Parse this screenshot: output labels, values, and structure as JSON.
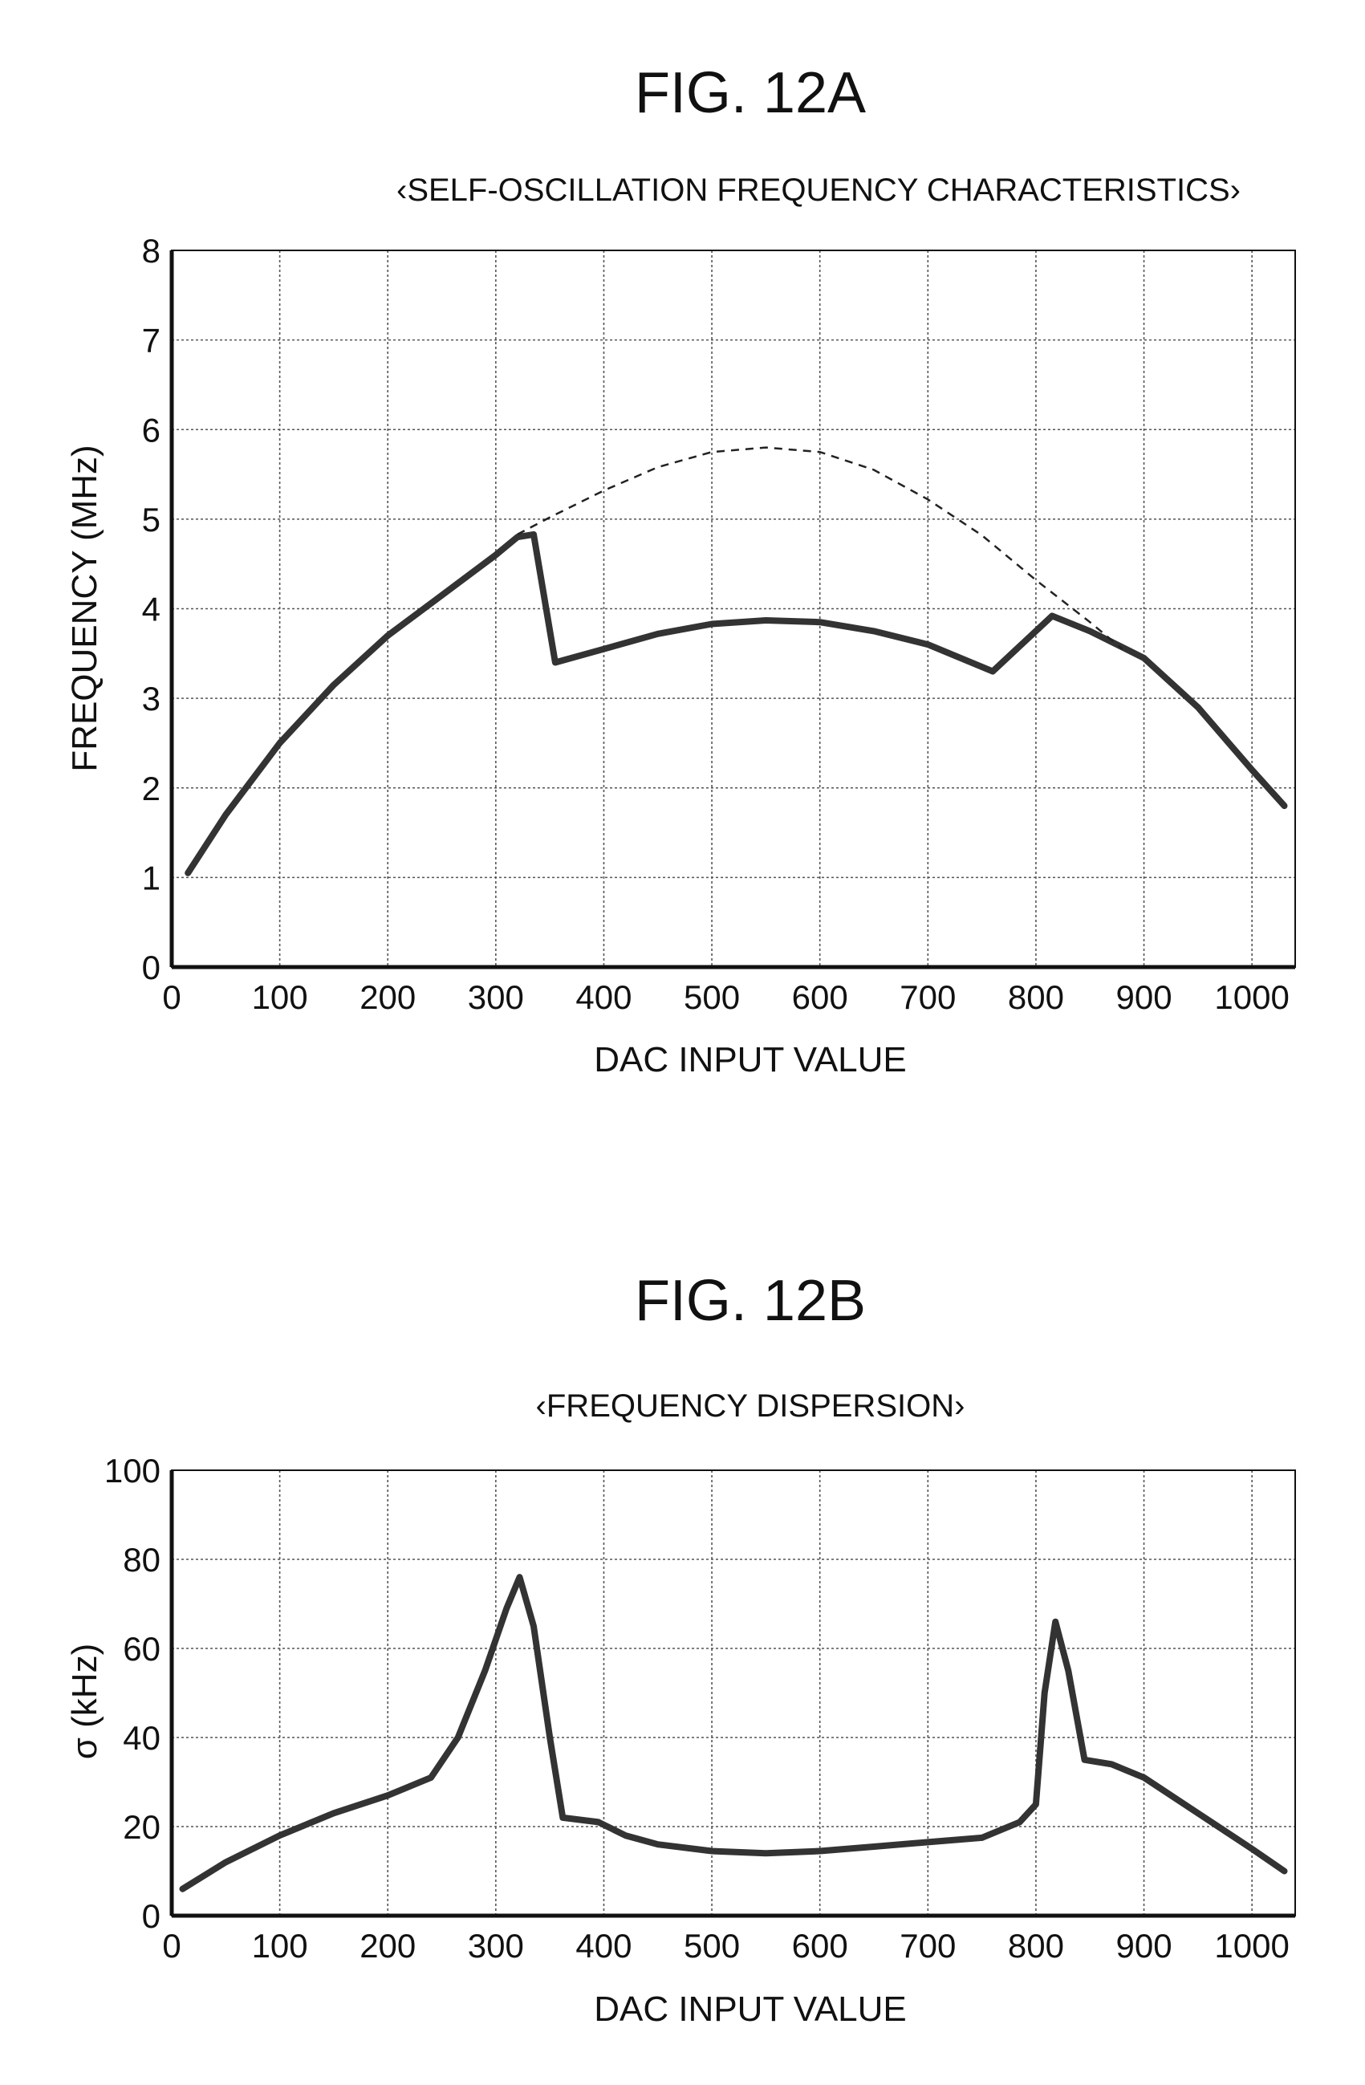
{
  "chart_data": [
    {
      "type": "line",
      "figure_label": "FIG. 12A",
      "title": "‹SELF-OSCILLATION FREQUENCY CHARACTERISTICS›",
      "xlabel": "DAC INPUT VALUE",
      "ylabel": "FREQUENCY (MHz)",
      "xlim": [
        0,
        1040
      ],
      "ylim": [
        0,
        8
      ],
      "xticks": [
        "0",
        "100",
        "200",
        "300",
        "400",
        "500",
        "600",
        "700",
        "800",
        "900",
        "1000"
      ],
      "yticks": [
        "0",
        "1",
        "2",
        "3",
        "4",
        "5",
        "6",
        "7",
        "8"
      ],
      "grid": true,
      "series": [
        {
          "style": "solid",
          "x": [
            15,
            50,
            100,
            150,
            200,
            250,
            300,
            320,
            335,
            355,
            400,
            450,
            500,
            550,
            600,
            650,
            700,
            760,
            815,
            850,
            900,
            950,
            1000,
            1030
          ],
          "y": [
            1.05,
            1.7,
            2.5,
            3.15,
            3.7,
            4.15,
            4.6,
            4.8,
            4.83,
            3.4,
            3.55,
            3.72,
            3.83,
            3.87,
            3.85,
            3.75,
            3.6,
            3.3,
            3.92,
            3.75,
            3.45,
            2.9,
            2.2,
            1.8
          ]
        },
        {
          "style": "dashed",
          "x": [
            320,
            350,
            400,
            450,
            500,
            550,
            600,
            650,
            700,
            750,
            800,
            850,
            880
          ],
          "y": [
            4.83,
            5.02,
            5.32,
            5.58,
            5.75,
            5.8,
            5.75,
            5.55,
            5.22,
            4.82,
            4.32,
            3.85,
            3.55
          ]
        }
      ]
    },
    {
      "type": "line",
      "figure_label": "FIG. 12B",
      "title": "‹FREQUENCY DISPERSION›",
      "xlabel": "DAC INPUT VALUE",
      "ylabel": "σ (kHz)",
      "xlim": [
        0,
        1040
      ],
      "ylim": [
        0,
        100
      ],
      "xticks": [
        "0",
        "100",
        "200",
        "300",
        "400",
        "500",
        "600",
        "700",
        "800",
        "900",
        "1000"
      ],
      "yticks": [
        "0",
        "20",
        "40",
        "60",
        "80",
        "100"
      ],
      "grid": true,
      "series": [
        {
          "style": "solid",
          "x": [
            10,
            50,
            100,
            150,
            200,
            240,
            265,
            290,
            310,
            322,
            335,
            350,
            362,
            395,
            420,
            450,
            500,
            550,
            600,
            650,
            700,
            750,
            785,
            800,
            808,
            818,
            830,
            845,
            870,
            900,
            950,
            1000,
            1030
          ],
          "y": [
            6,
            12,
            18,
            23,
            27,
            31,
            40,
            55,
            69,
            76,
            65,
            40,
            22,
            21,
            18,
            16,
            14.5,
            14,
            14.5,
            15.5,
            16.5,
            17.5,
            21,
            25,
            50,
            66,
            55,
            35,
            34,
            31,
            23,
            15,
            10
          ]
        }
      ]
    }
  ]
}
